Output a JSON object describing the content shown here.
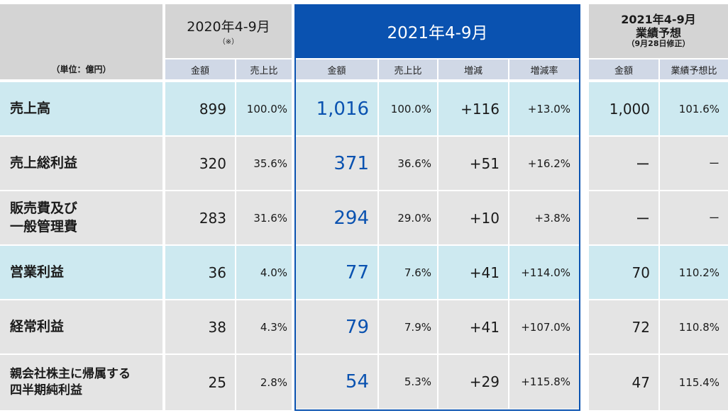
{
  "header": {
    "unit_label": "（単位：億円）",
    "prev_period": "2020年4-9月",
    "prev_note": "（※）",
    "curr_period": "2021年4-9月",
    "forecast_title_1": "2021年4-9月",
    "forecast_title_2": "業績予想",
    "forecast_title_3": "（9月28日修正）"
  },
  "subheaders": {
    "prev_amount": "金額",
    "prev_ratio": "売上比",
    "curr_amount": "金額",
    "curr_ratio": "売上比",
    "curr_change": "増減",
    "curr_change_rate": "増減率",
    "fc_amount": "金額",
    "fc_ratio": "業績予想比"
  },
  "rows": [
    {
      "label_1": "売上高",
      "label_2": "",
      "prev_amount": "899",
      "prev_ratio": "100.0%",
      "curr_amount": "1,016",
      "curr_ratio": "100.0%",
      "change": "+116",
      "change_rate": "+13.0%",
      "fc_amount": "1,000",
      "fc_ratio": "101.6%"
    },
    {
      "label_1": "売上総利益",
      "label_2": "",
      "prev_amount": "320",
      "prev_ratio": "35.6%",
      "curr_amount": "371",
      "curr_ratio": "36.6%",
      "change": "+51",
      "change_rate": "+16.2%",
      "fc_amount": "ー",
      "fc_ratio": "ー"
    },
    {
      "label_1": "販売費及び",
      "label_2": "一般管理費",
      "prev_amount": "283",
      "prev_ratio": "31.6%",
      "curr_amount": "294",
      "curr_ratio": "29.0%",
      "change": "+10",
      "change_rate": "+3.8%",
      "fc_amount": "ー",
      "fc_ratio": "ー"
    },
    {
      "label_1": "営業利益",
      "label_2": "",
      "prev_amount": "36",
      "prev_ratio": "4.0%",
      "curr_amount": "77",
      "curr_ratio": "7.6%",
      "change": "+41",
      "change_rate": "+114.0%",
      "fc_amount": "70",
      "fc_ratio": "110.2%"
    },
    {
      "label_1": "経常利益",
      "label_2": "",
      "prev_amount": "38",
      "prev_ratio": "4.3%",
      "curr_amount": "79",
      "curr_ratio": "7.9%",
      "change": "+41",
      "change_rate": "+107.0%",
      "fc_amount": "72",
      "fc_ratio": "110.8%"
    },
    {
      "label_1": "親会社株主に帰属する",
      "label_2": "四半期純利益",
      "prev_amount": "25",
      "prev_ratio": "2.8%",
      "curr_amount": "54",
      "curr_ratio": "5.3%",
      "change": "+29",
      "change_rate": "+115.8%",
      "fc_amount": "47",
      "fc_ratio": "115.4%"
    }
  ],
  "colors": {
    "accent_blue": "#0a52b0",
    "row_highlight": "#cde9f0",
    "row_gray": "#e4e4e4",
    "header_gray": "#d4d4d4",
    "subheader": "#d0d8e6"
  }
}
